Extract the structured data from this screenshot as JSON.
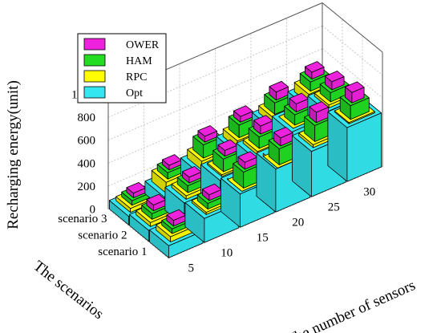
{
  "chart_data": {
    "type": "bar3d-stacked",
    "title": "",
    "xlabel": "The number of sensors",
    "ylabel": "The scenarios",
    "zlabel": "Recharging energy(unit)",
    "x": [
      "5",
      "10",
      "15",
      "20",
      "25",
      "30"
    ],
    "y": [
      "scenario 1",
      "scenario 2",
      "scenario 3"
    ],
    "zlim": [
      0,
      1000
    ],
    "zticks": [
      "0",
      "200",
      "400",
      "600",
      "800",
      "1000"
    ],
    "legend_position": "top-left",
    "series": [
      {
        "name": "Opt",
        "color": "#33e6ef",
        "values": [
          [
            105,
            210,
            290,
            375,
            395,
            470
          ],
          [
            95,
            200,
            265,
            320,
            420,
            465
          ],
          [
            75,
            110,
            180,
            235,
            310,
            360
          ]
        ]
      },
      {
        "name": "RPC",
        "color": "#ffff00",
        "values": [
          [
            150,
            230,
            280,
            350,
            420,
            480
          ],
          [
            130,
            230,
            280,
            350,
            420,
            490
          ],
          [
            110,
            205,
            255,
            300,
            370,
            440
          ]
        ]
      },
      {
        "name": "HAM",
        "color": "#22dd22",
        "values": [
          [
            190,
            280,
            420,
            490,
            560,
            600
          ],
          [
            180,
            290,
            390,
            450,
            510,
            570
          ],
          [
            150,
            260,
            370,
            410,
            470,
            520
          ]
        ]
      },
      {
        "name": "OWER",
        "color": "#ee22dd",
        "values": [
          [
            240,
            330,
            480,
            560,
            650,
            690
          ],
          [
            230,
            340,
            440,
            520,
            580,
            640
          ],
          [
            190,
            300,
            420,
            460,
            540,
            580
          ]
        ]
      }
    ]
  }
}
